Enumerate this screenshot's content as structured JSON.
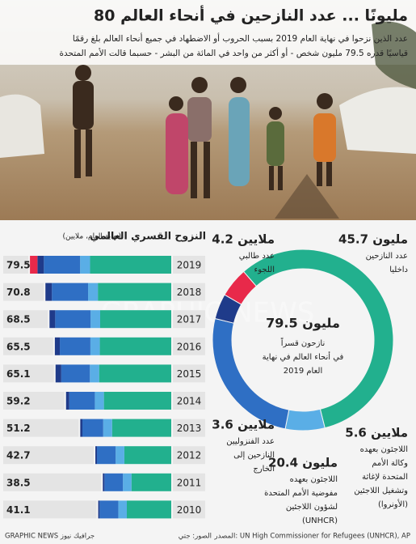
{
  "header": {
    "title": "80 مليونًا ... عدد النازحين في أنحاء العالم",
    "subtitle": [
      "عدد الذين نزحوا في نهاية العام 2019 بسبب الحروب أو الاضطهاد في جميع أنحاء العالم بلغ رقمًا",
      "قياسيًا قدره 79.5 مليون شخص - أو أكثر من واحد في المائة من البشر - حسبما قالت الأمم المتحدة"
    ]
  },
  "watermark": "GRAPHIC NEWS",
  "photo_credit": "الصور: جتي",
  "source": "المصدر: UN High Commissioner for Refugees (UNHCR), AP",
  "brand": "GRAPHIC NEWS جرافيك نيوز",
  "chart_data": [
    {
      "type": "bar",
      "orientation": "horizontal",
      "stacked": true,
      "title": "النزوح القسري العالمي",
      "subtitle": "(نهاية العام، ملايين)",
      "categories": [
        "2019",
        "2018",
        "2017",
        "2016",
        "2015",
        "2014",
        "2013",
        "2012",
        "2011",
        "2010"
      ],
      "totals": [
        79.5,
        70.8,
        68.5,
        65.5,
        65.1,
        59.2,
        51.2,
        42.7,
        38.5,
        41.1
      ],
      "series": [
        {
          "color": "#22b08e",
          "values": [
            45.7,
            41.3,
            40.0,
            40.2,
            40.6,
            37.9,
            33.3,
            26.4,
            22.4,
            25.0
          ]
        },
        {
          "color": "#5aaee6",
          "values": [
            5.6,
            5.5,
            5.4,
            5.3,
            5.2,
            5.1,
            5.0,
            4.9,
            4.8,
            4.8
          ]
        },
        {
          "color": "#2f6fc4",
          "values": [
            20.4,
            20.4,
            19.9,
            17.2,
            16.1,
            14.4,
            11.7,
            10.5,
            10.4,
            10.5
          ]
        },
        {
          "color": "#1f3b8a",
          "values": [
            3.6,
            3.6,
            3.2,
            2.8,
            3.2,
            1.8,
            1.2,
            0.9,
            0.9,
            0.8
          ]
        },
        {
          "color": "#e8294a",
          "values": [
            4.2,
            null,
            null,
            null,
            null,
            null,
            null,
            null,
            null,
            null
          ]
        }
      ]
    },
    {
      "type": "donut",
      "values": [
        45.7,
        5.6,
        20.4,
        3.6,
        4.2
      ],
      "value_labels": [
        "45.7 مليون",
        "5.6 ملايين",
        "20.4 مليون",
        "3.6 ملايين",
        "4.2 ملايين"
      ],
      "colors": [
        "#22b08e",
        "#5aaee6",
        "#2f6fc4",
        "#1f3b8a",
        "#e8294a"
      ],
      "descriptions": [
        [
          "عدد النازحين",
          "داخليا"
        ],
        [
          "اللاجئون بعهده",
          "وكالة الأمم",
          "المتحدة لإغاثة",
          "وتشغيل اللاجئين",
          "(الأونروا)"
        ],
        [
          "اللاجئون بعهده",
          "مفوضية الأمم المتحدة",
          "لشؤون اللاجئين",
          "(UNHCR)"
        ],
        [
          "عدد الفنزوليين",
          "النازحين إلى",
          "الخارج"
        ],
        [
          "عدد طالبي",
          "اللجوء"
        ]
      ],
      "center_label": "79.5 مليون",
      "center_lines": [
        "نازحون قسراً",
        "في أنحاء العالم في نهاية",
        "العام 2019"
      ]
    }
  ]
}
